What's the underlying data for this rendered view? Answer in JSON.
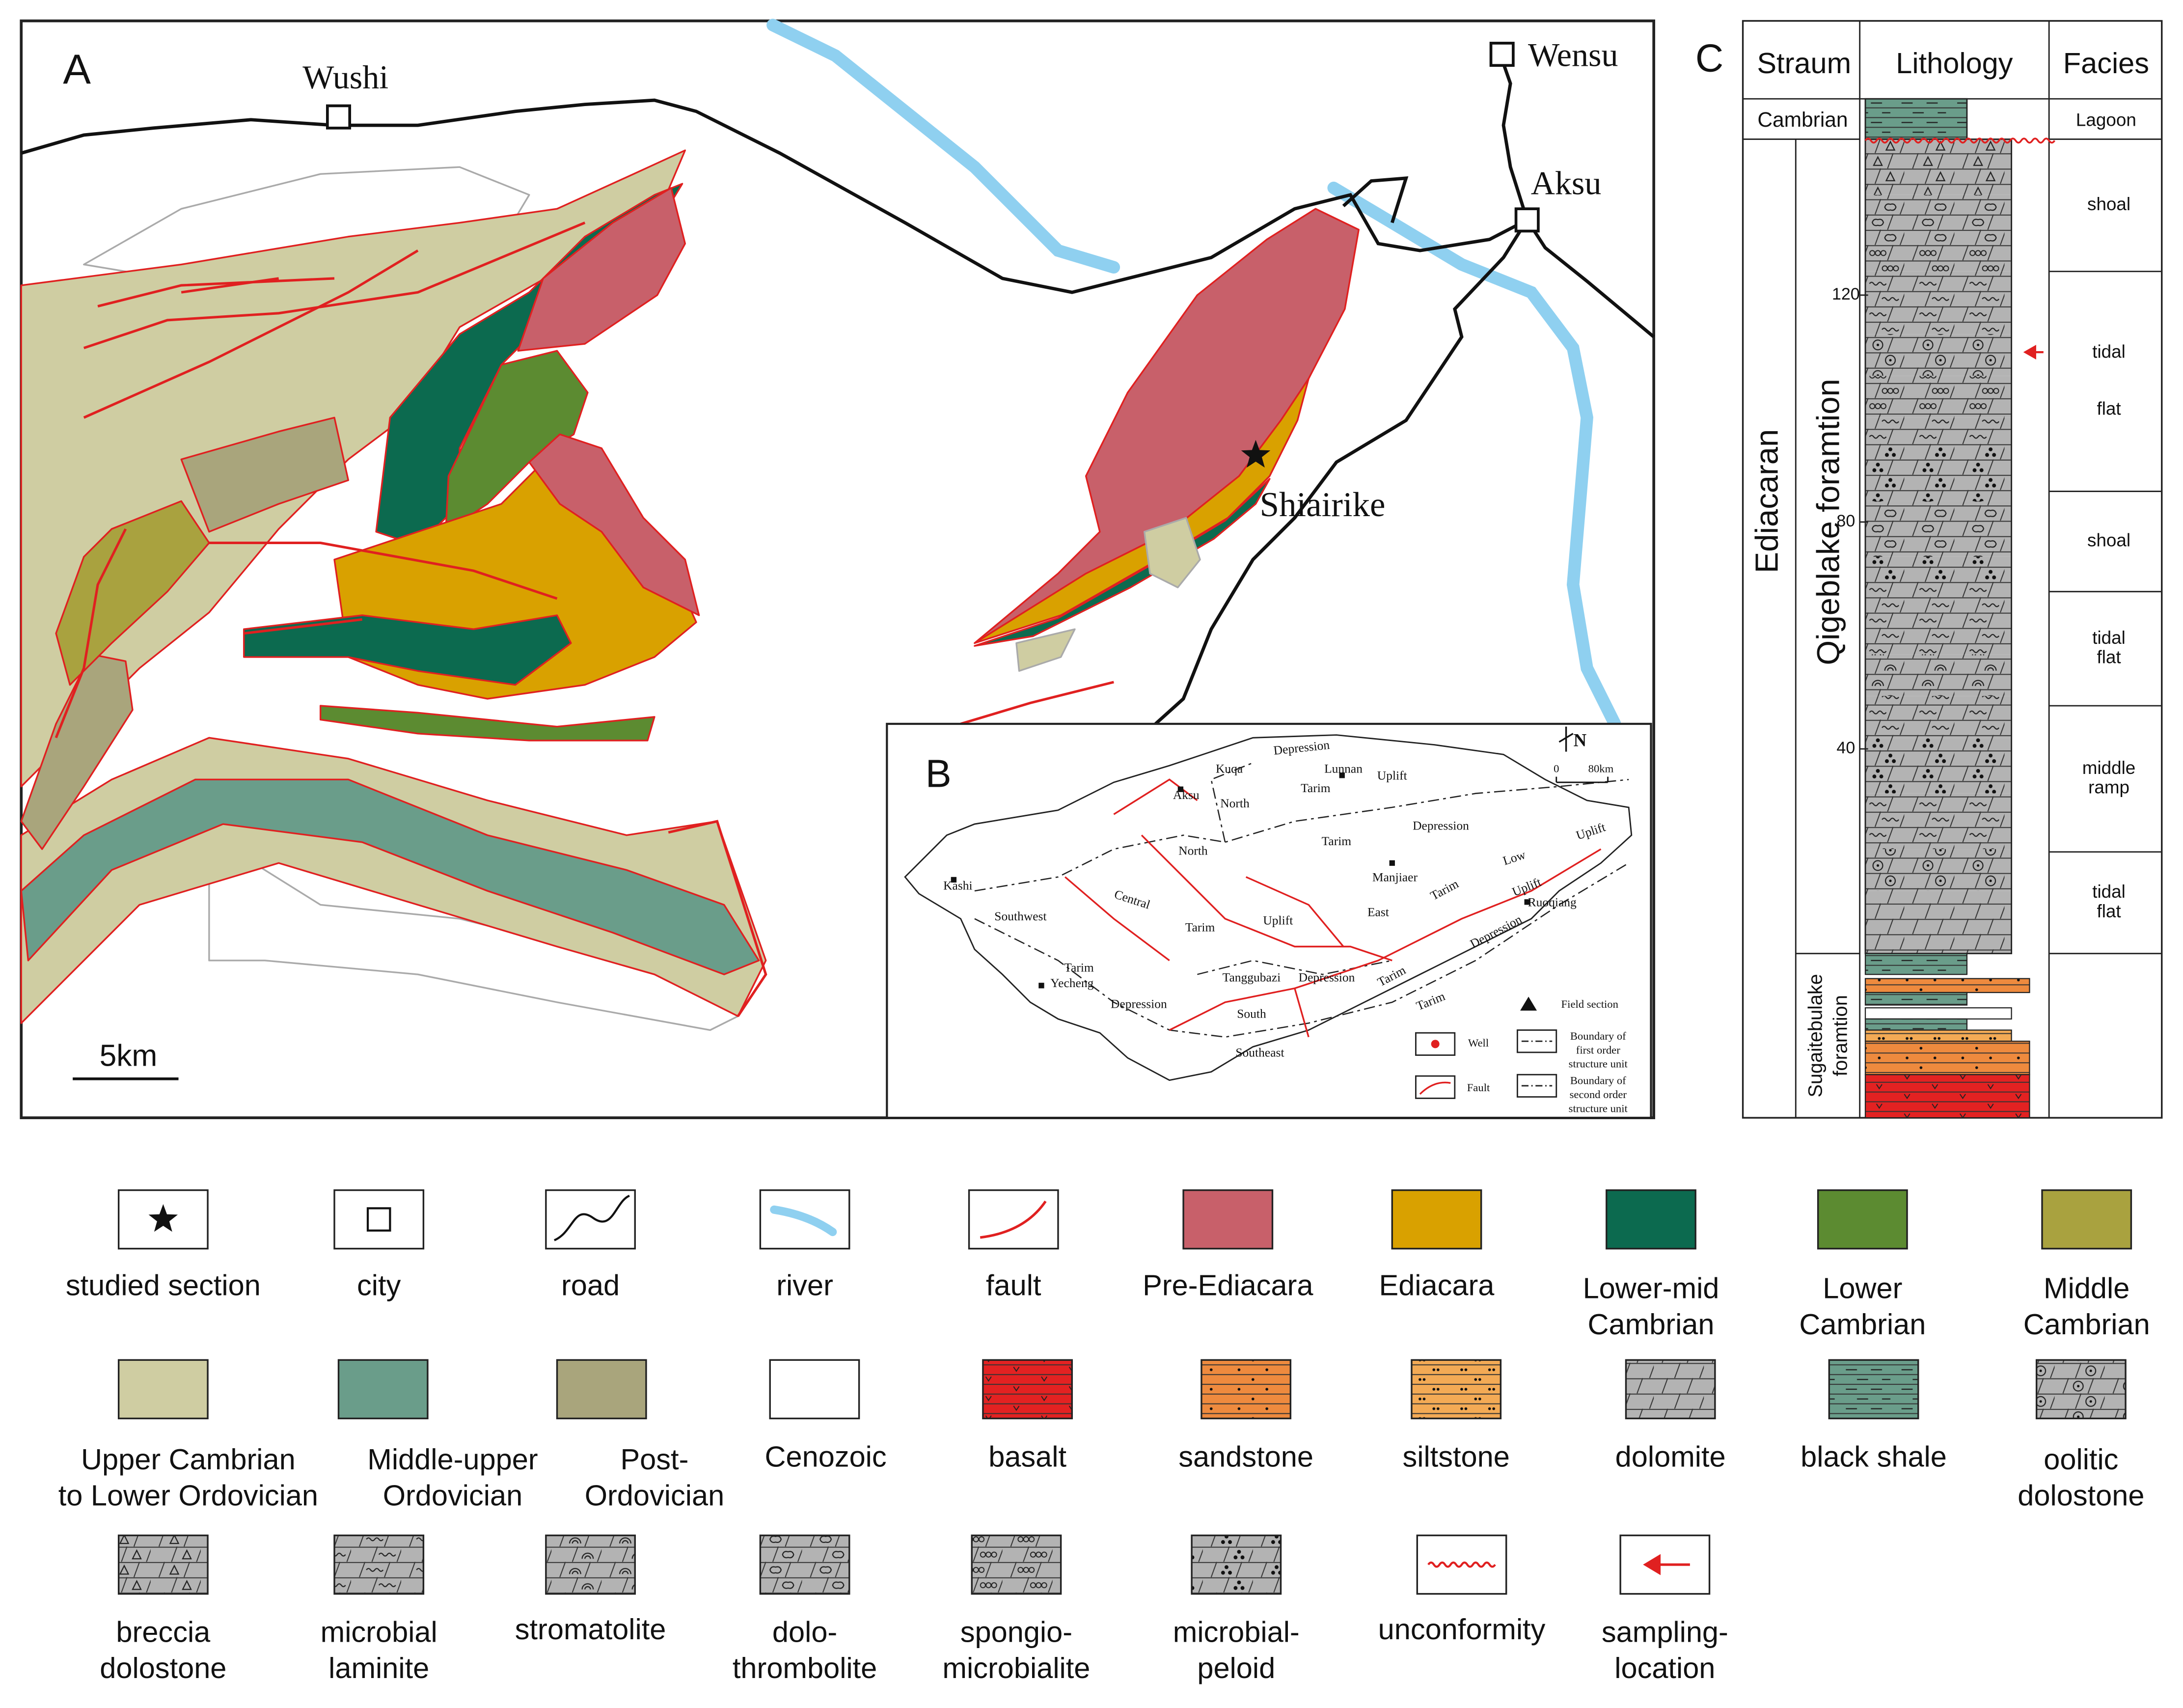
{
  "panel_a": {
    "label": "A",
    "cities": [
      "Wushi",
      "Wensu",
      "Aksu"
    ],
    "studied_section": "Shiairike",
    "scale_bar": "5km"
  },
  "panel_b": {
    "label": "B",
    "map_labels": [
      "Kuqa",
      "Depression",
      "Lunnan",
      "Uplift",
      "North",
      "Tarim",
      "Aksu",
      "North",
      "Tarim",
      "Depression",
      "Kashi",
      "Central",
      "Tarim",
      "Uplift",
      "Southwest",
      "East",
      "Manjiaer",
      "Low",
      "Uplift",
      "Tarim",
      "Uplift",
      "Ruoqiang",
      "Depression",
      "Tarim",
      "Depression",
      "Yecheng",
      "Tanggubazi",
      "Depression",
      "South",
      "Tarim",
      "Tarim",
      "Southeast"
    ],
    "north": "N",
    "scale": [
      "0",
      "80km"
    ],
    "legend": [
      [
        "Field section"
      ],
      [
        "Well"
      ],
      [
        "Fault"
      ],
      [
        "Boundary of",
        "first order",
        "structure unit"
      ],
      [
        "Boundary of",
        "second order",
        "structure unit"
      ]
    ]
  },
  "panel_c": {
    "label": "C",
    "headers": [
      "Straum",
      "Lithology",
      "Facies"
    ],
    "cambrian": "Cambrian",
    "lagoon": "Lagoon",
    "ediacaran": "Ediacaran",
    "qigeblake": "Qigeblake foramtion",
    "sugaitebulake": [
      "Sugaitebulake",
      "foramtion"
    ],
    "depth_ticks": [
      120,
      80,
      40
    ],
    "facies": [
      [
        "shoal"
      ],
      [
        "tidal",
        "flat"
      ],
      [
        "shoal"
      ],
      [
        "tidal",
        "flat"
      ],
      [
        "middle",
        "ramp"
      ],
      [
        "tidal",
        "flat"
      ]
    ]
  },
  "legend": {
    "items": [
      {
        "lines": [
          "studied section"
        ]
      },
      {
        "lines": [
          "city"
        ]
      },
      {
        "lines": [
          "road"
        ]
      },
      {
        "lines": [
          "river"
        ]
      },
      {
        "lines": [
          "fault"
        ]
      },
      {
        "lines": [
          "Pre-Ediacara"
        ]
      },
      {
        "lines": [
          "Ediacara"
        ]
      },
      {
        "lines": [
          "Lower-mid",
          "Cambrian"
        ]
      },
      {
        "lines": [
          "Lower",
          "Cambrian"
        ]
      },
      {
        "lines": [
          "Middle",
          "Cambrian"
        ]
      },
      {
        "lines": [
          "Upper Cambrian",
          "to Lower Ordovician"
        ]
      },
      {
        "lines": [
          "Middle-upper",
          "Ordovician"
        ]
      },
      {
        "lines": [
          "Post-",
          "Ordovician"
        ]
      },
      {
        "lines": [
          "Cenozoic"
        ]
      },
      {
        "lines": [
          "basalt"
        ]
      },
      {
        "lines": [
          "sandstone"
        ]
      },
      {
        "lines": [
          "siltstone"
        ]
      },
      {
        "lines": [
          "dolomite"
        ]
      },
      {
        "lines": [
          "black shale"
        ]
      },
      {
        "lines": [
          "oolitic",
          "dolostone"
        ]
      },
      {
        "lines": [
          "breccia",
          "dolostone"
        ]
      },
      {
        "lines": [
          "microbial",
          "laminite"
        ]
      },
      {
        "lines": [
          "stromatolite"
        ]
      },
      {
        "lines": [
          "dolo-",
          "thrombolite"
        ]
      },
      {
        "lines": [
          "spongio-",
          "microbialite"
        ]
      },
      {
        "lines": [
          "microbial-",
          "peloid"
        ]
      },
      {
        "lines": [
          "unconformity"
        ]
      },
      {
        "lines": [
          "sampling-",
          "location"
        ]
      }
    ]
  }
}
